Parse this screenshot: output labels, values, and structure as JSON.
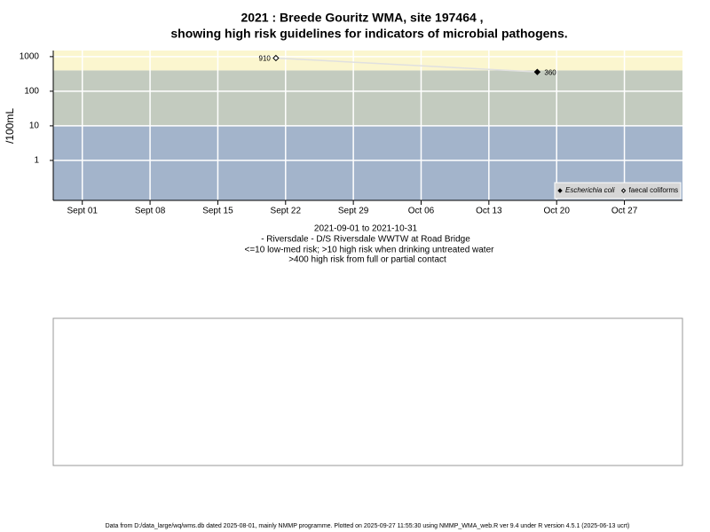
{
  "chart_data": {
    "type": "scatter",
    "title": [
      "2021 : Breede Gouritz WMA, site 197464 ,",
      "showing high risk guidelines for indicators of microbial pathogens."
    ],
    "y_label": "/100mL",
    "log_y": true,
    "grid": true,
    "ylim": [
      0.07,
      1500
    ],
    "yticks": [
      1,
      10,
      100,
      1000
    ],
    "xlim": [
      "2021-08-29",
      "2021-11-02"
    ],
    "xticks": [
      {
        "value": "2021-09-01",
        "label": "Sept 01"
      },
      {
        "value": "2021-09-08",
        "label": "Sept 08"
      },
      {
        "value": "2021-09-15",
        "label": "Sept 15"
      },
      {
        "value": "2021-09-22",
        "label": "Sept 22"
      },
      {
        "value": "2021-09-29",
        "label": "Sept 29"
      },
      {
        "value": "2021-10-06",
        "label": "Oct 06"
      },
      {
        "value": "2021-10-13",
        "label": "Oct 13"
      },
      {
        "value": "2021-10-20",
        "label": "Oct 20"
      },
      {
        "value": "2021-10-27",
        "label": "Oct 27"
      }
    ],
    "thresholds": [
      10,
      400
    ],
    "band_colors": [
      "#a3b4cb",
      "#c3cbbf",
      "#fbf6cf"
    ],
    "series": [
      {
        "name": "Escherichia coli",
        "color": "#000000",
        "filled": true,
        "x": [
          "2021-10-18"
        ],
        "values": [
          360
        ]
      },
      {
        "name": "faecal coliforms",
        "color": "#000000",
        "filled": false,
        "x": [
          "2021-09-21"
        ],
        "values": [
          910
        ]
      }
    ],
    "notes": [
      "2021-09-01 to 2021-10-31",
      "- Riversdale - D/S Riversdale WWTW at Road Bridge",
      "<=10 low-med risk; >10 high risk when drinking untreated water",
      ">400 high risk from full or partial contact"
    ],
    "legend": "bottom-right",
    "footer": "Data from D:/data_large/wq/wms.db dated 2025-08-01, mainly NMMP programme. Plotted on 2025-09-27 11:55:30 using NMMP_WMA_web.R ver 9.4 under R version 4.5.1 (2025-06-13 ucrt)"
  }
}
